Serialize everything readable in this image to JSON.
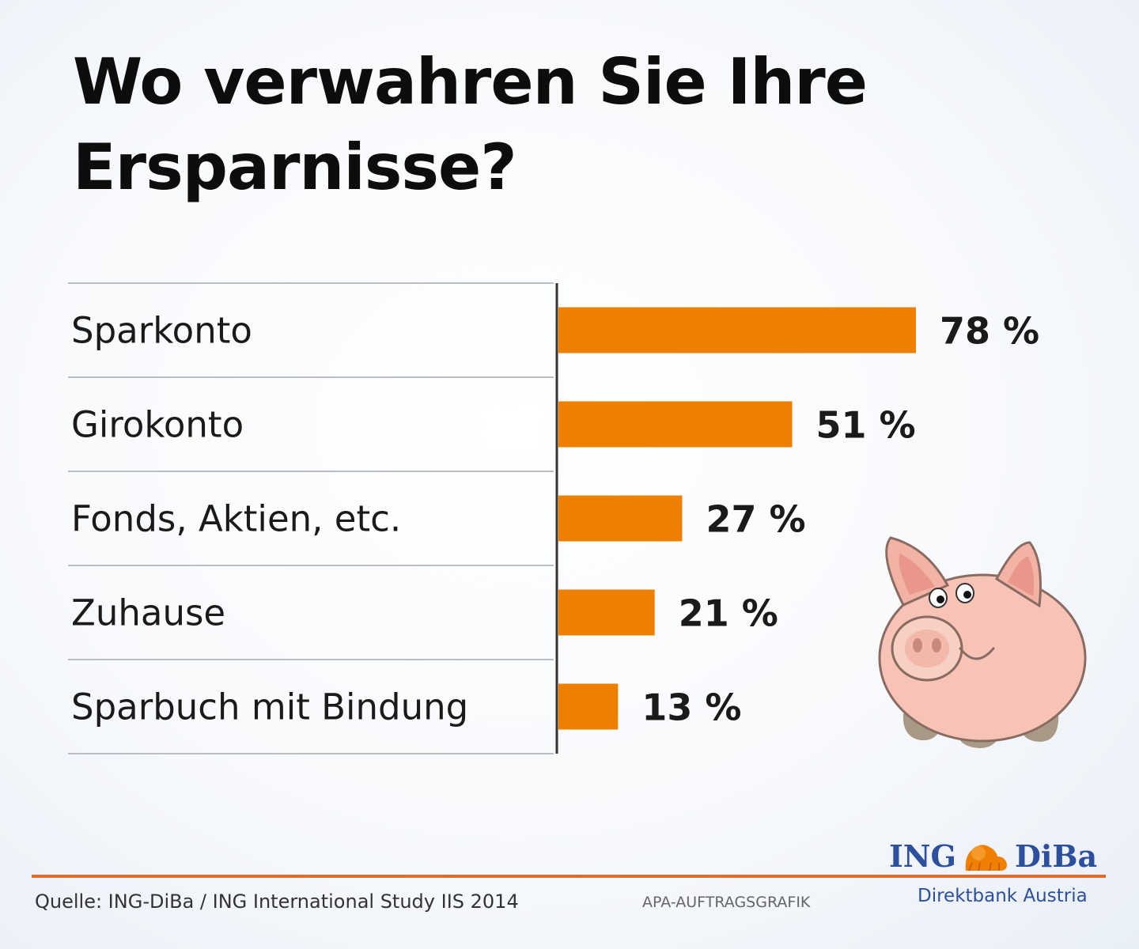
{
  "chart_data": {
    "type": "bar",
    "orientation": "horizontal",
    "title_lines": [
      "Wo verwahren Sie Ihre",
      "Ersparnisse?"
    ],
    "categories": [
      "Sparkonto",
      "Girokonto",
      "Fonds, Aktien, etc.",
      "Zuhause",
      "Sparbuch mit Bindung"
    ],
    "values": [
      78,
      51,
      27,
      21,
      13
    ],
    "value_labels": [
      "78 %",
      "51 %",
      "27 %",
      "21 %",
      "13 %"
    ],
    "unit": "%",
    "bar_color": "#ee7f00",
    "xlim": [
      0,
      100
    ],
    "grid": false,
    "legend": "none"
  },
  "footer": {
    "source": "Quelle: ING-DiBa / ING International Study IIS 2014",
    "credit": "APA-AUFTRAGSGRAFIK",
    "logo_left": "ING",
    "logo_right": "DiBa",
    "tagline": "Direktbank Austria"
  },
  "colors": {
    "brand_blue": "#2c4f9e",
    "rule_orange": "#e06c2c"
  },
  "icons": [
    "piggy-bank-icon",
    "lion-icon"
  ]
}
